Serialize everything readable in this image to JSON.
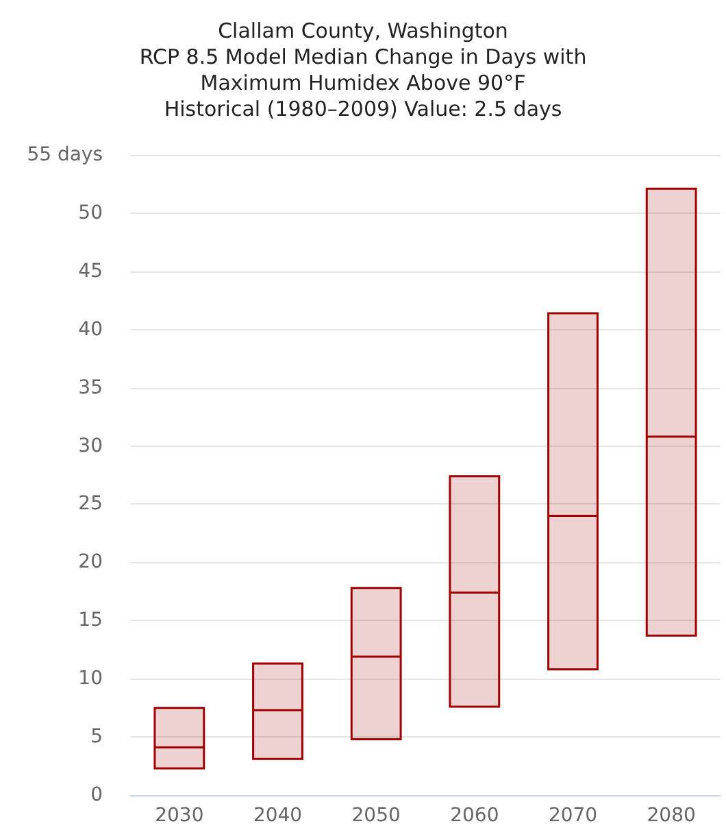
{
  "chart_data": {
    "type": "box",
    "title": "Clallam County, Washington\nRCP 8.5 Model Median Change in Days with\nMaximum Humidex Above 90°F",
    "subtitle": "Historical (1980–2009) Value: 2.5 days",
    "categories": [
      "2030",
      "2040",
      "2050",
      "2060",
      "2070",
      "2080"
    ],
    "series": [
      {
        "color": "#a00000",
        "boxes": [
          {
            "low": 2.3,
            "q1": 2.3,
            "median": 4.1,
            "q3": 7.5,
            "high": 7.5
          },
          {
            "low": 3.1,
            "q1": 3.1,
            "median": 7.3,
            "q3": 11.3,
            "high": 11.3
          },
          {
            "low": 4.8,
            "q1": 4.8,
            "median": 11.9,
            "q3": 17.8,
            "high": 17.8
          },
          {
            "low": 7.6,
            "q1": 7.6,
            "median": 17.4,
            "q3": 27.4,
            "high": 27.4
          },
          {
            "low": 10.8,
            "q1": 10.8,
            "median": 24.0,
            "q3": 41.4,
            "high": 41.4
          },
          {
            "low": 13.7,
            "q1": 13.7,
            "median": 30.8,
            "q3": 52.1,
            "high": 52.1
          }
        ]
      }
    ],
    "ylim": [
      0,
      55
    ],
    "yticks": [
      0,
      5,
      10,
      15,
      20,
      25,
      30,
      35,
      40,
      45,
      50,
      {
        "value": 55,
        "label": "55 days"
      }
    ],
    "grid": "y"
  }
}
